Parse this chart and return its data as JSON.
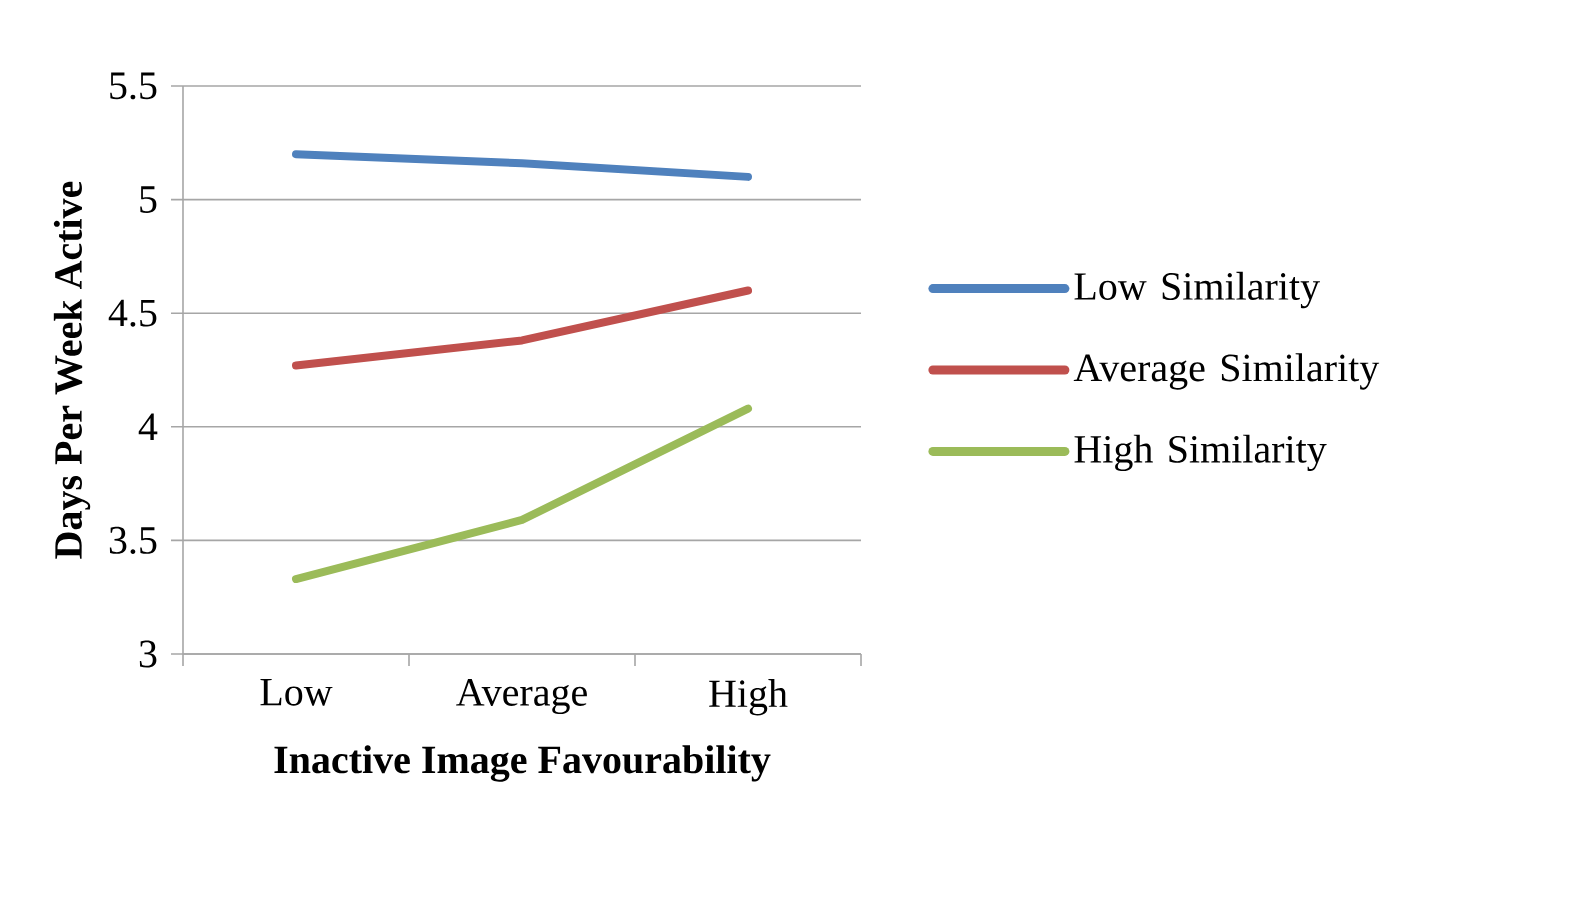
{
  "chart_data": {
    "type": "line",
    "xlabel": "Inactive Image Favourability",
    "ylabel": "Days Per Week Active",
    "categories": [
      "Low",
      "Average",
      "High"
    ],
    "series": [
      {
        "name": "Low Similarity",
        "color": "#4f81bd",
        "values": [
          5.2,
          5.16,
          5.1
        ]
      },
      {
        "name": "Average Similarity",
        "color": "#c0504d",
        "values": [
          4.27,
          4.38,
          4.6
        ]
      },
      {
        "name": "High Similarity",
        "color": "#9bbb59",
        "values": [
          3.33,
          3.59,
          4.08
        ]
      }
    ],
    "ylim": [
      3,
      5.5
    ],
    "yticks": [
      3,
      3.5,
      4,
      4.5,
      5,
      5.5
    ],
    "grid": "y",
    "legend": "right",
    "marker": "none",
    "line_style": "solid"
  }
}
